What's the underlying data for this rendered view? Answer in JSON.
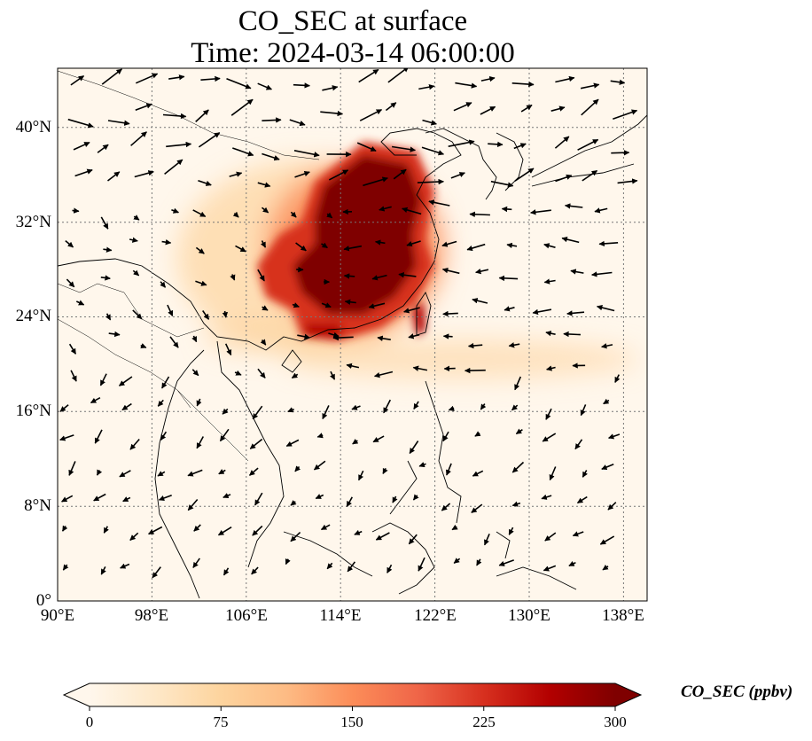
{
  "title_line1": "CO_SEC at surface",
  "title_line2": "Time: 2024-03-14 06:00:00",
  "map": {
    "lon_range": [
      90,
      140
    ],
    "lat_range": [
      0,
      45
    ],
    "gridlines": true,
    "y_ticks": [
      "0°",
      "8°N",
      "16°N",
      "24°N",
      "32°N",
      "40°N"
    ],
    "x_ticks": [
      "90°E",
      "98°E",
      "106°E",
      "114°E",
      "122°E",
      "130°E",
      "138°E"
    ]
  },
  "colorbar": {
    "label": "CO_SEC (ppbv)",
    "ticks": [
      "0",
      "75",
      "150",
      "225",
      "300"
    ],
    "min": 0,
    "max": 300,
    "extend": "both",
    "colormap": "OrRd",
    "colors": [
      "#fff7ec",
      "#fee8c8",
      "#fdd49e",
      "#fdbb84",
      "#fc8d59",
      "#ef6548",
      "#d7301f",
      "#b30000",
      "#7f0000"
    ]
  },
  "field_description": {
    "high_concentration_region": "eastern and central China, roughly 105-120°E, 22-38°N",
    "secondary_plume": "extends east over the ocean near 16-22°N toward 138°E"
  },
  "wind_vectors": true
}
